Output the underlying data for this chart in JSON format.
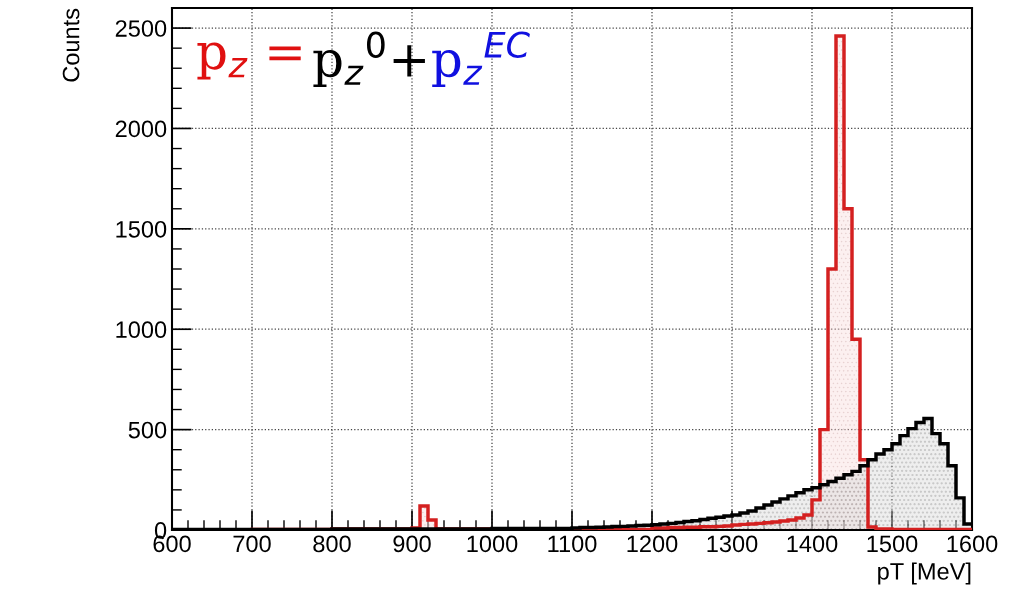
{
  "chart_data": {
    "type": "histogram",
    "xlabel": "pT [MeV]",
    "ylabel": "Counts",
    "annotations": [
      "p$_{z}$ = ",
      "p$_{z}$$^{0}$+",
      "p$_{z}$$^{EC}$"
    ],
    "bins": [
      600,
      610,
      620,
      630,
      640,
      650,
      660,
      670,
      680,
      690,
      700,
      710,
      720,
      730,
      740,
      750,
      760,
      770,
      780,
      790,
      800,
      810,
      820,
      830,
      840,
      850,
      860,
      870,
      880,
      890,
      900,
      910,
      920,
      930,
      940,
      950,
      960,
      970,
      980,
      990,
      1000,
      1010,
      1020,
      1030,
      1040,
      1050,
      1060,
      1070,
      1080,
      1090,
      1100,
      1110,
      1120,
      1130,
      1140,
      1150,
      1160,
      1170,
      1180,
      1190,
      1200,
      1210,
      1220,
      1230,
      1240,
      1250,
      1260,
      1270,
      1280,
      1290,
      1300,
      1310,
      1320,
      1330,
      1340,
      1350,
      1360,
      1370,
      1380,
      1390,
      1400,
      1410,
      1420,
      1430,
      1440,
      1450,
      1460,
      1470,
      1480,
      1490,
      1500,
      1510,
      1520,
      1530,
      1540,
      1550,
      1560,
      1570,
      1580,
      1590,
      1600
    ],
    "series": [
      {
        "color": "#000000",
        "values": [
          3,
          3,
          3,
          3,
          3,
          3,
          3,
          3,
          3,
          3,
          3,
          3,
          3,
          3,
          3,
          3,
          3,
          3,
          3,
          3,
          5,
          5,
          5,
          5,
          5,
          5,
          5,
          5,
          5,
          5,
          5,
          5,
          5,
          5,
          5,
          5,
          5,
          5,
          5,
          5,
          8,
          8,
          8,
          8,
          8,
          8,
          8,
          8,
          8,
          8,
          10,
          12,
          12,
          14,
          15,
          17,
          18,
          20,
          22,
          24,
          26,
          30,
          33,
          37,
          42,
          46,
          52,
          58,
          64,
          70,
          75,
          85,
          95,
          110,
          125,
          140,
          155,
          170,
          185,
          200,
          210,
          225,
          242,
          258,
          275,
          292,
          320,
          350,
          378,
          400,
          430,
          470,
          505,
          535,
          555,
          480,
          430,
          320,
          160,
          30
        ]
      },
      {
        "color": "#d42020",
        "values": [
          0,
          0,
          0,
          0,
          0,
          0,
          0,
          0,
          0,
          0,
          2,
          2,
          2,
          2,
          2,
          2,
          2,
          2,
          2,
          2,
          5,
          5,
          5,
          5,
          5,
          5,
          5,
          5,
          5,
          5,
          10,
          120,
          50,
          5,
          5,
          5,
          5,
          5,
          5,
          5,
          3,
          3,
          3,
          3,
          3,
          3,
          3,
          3,
          3,
          3,
          3,
          3,
          3,
          3,
          3,
          3,
          3,
          3,
          3,
          3,
          10,
          10,
          12,
          12,
          14,
          14,
          16,
          16,
          18,
          20,
          25,
          28,
          30,
          33,
          36,
          40,
          45,
          50,
          60,
          75,
          150,
          500,
          1300,
          2460,
          1600,
          950,
          350,
          15,
          5,
          5,
          2,
          2,
          2,
          2,
          2,
          2,
          2,
          2,
          2,
          2
        ]
      }
    ],
    "xlim": [
      600,
      1600
    ],
    "ylim": [
      0,
      2600
    ],
    "xticks": [
      600,
      700,
      800,
      900,
      1000,
      1100,
      1200,
      1300,
      1400,
      1500,
      1600
    ],
    "yticks": [
      0,
      500,
      1000,
      1500,
      2000,
      2500
    ],
    "grid": true
  }
}
